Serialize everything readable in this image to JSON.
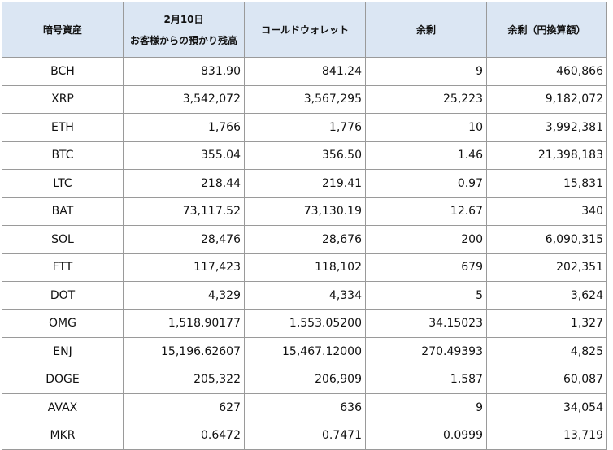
{
  "headers": {
    "asset": "暗号資産",
    "custody_date": "2月10日",
    "custody_label": "お客様からの預かり残高",
    "cold_wallet": "コールドウォレット",
    "surplus": "余剰",
    "surplus_jpy": "余剰（円換算額）"
  },
  "rows": [
    {
      "asset": "BCH",
      "custody": "831.90",
      "cold": "841.24",
      "surplus": "9",
      "jpy": "460,866"
    },
    {
      "asset": "XRP",
      "custody": "3,542,072",
      "cold": "3,567,295",
      "surplus": "25,223",
      "jpy": "9,182,072"
    },
    {
      "asset": "ETH",
      "custody": "1,766",
      "cold": "1,776",
      "surplus": "10",
      "jpy": "3,992,381"
    },
    {
      "asset": "BTC",
      "custody": "355.04",
      "cold": "356.50",
      "surplus": "1.46",
      "jpy": "21,398,183"
    },
    {
      "asset": "LTC",
      "custody": "218.44",
      "cold": "219.41",
      "surplus": "0.97",
      "jpy": "15,831"
    },
    {
      "asset": "BAT",
      "custody": "73,117.52",
      "cold": "73,130.19",
      "surplus": "12.67",
      "jpy": "340"
    },
    {
      "asset": "SOL",
      "custody": "28,476",
      "cold": "28,676",
      "surplus": "200",
      "jpy": "6,090,315"
    },
    {
      "asset": "FTT",
      "custody": "117,423",
      "cold": "118,102",
      "surplus": "679",
      "jpy": "202,351"
    },
    {
      "asset": "DOT",
      "custody": "4,329",
      "cold": "4,334",
      "surplus": "5",
      "jpy": "3,624"
    },
    {
      "asset": "OMG",
      "custody": "1,518.90177",
      "cold": "1,553.05200",
      "surplus": "34.15023",
      "jpy": "1,327"
    },
    {
      "asset": "ENJ",
      "custody": "15,196.62607",
      "cold": "15,467.12000",
      "surplus": "270.49393",
      "jpy": "4,825"
    },
    {
      "asset": "DOGE",
      "custody": "205,322",
      "cold": "206,909",
      "surplus": "1,587",
      "jpy": "60,087"
    },
    {
      "asset": "AVAX",
      "custody": "627",
      "cold": "636",
      "surplus": "9",
      "jpy": "34,054"
    },
    {
      "asset": "MKR",
      "custody": "0.6472",
      "cold": "0.7471",
      "surplus": "0.0999",
      "jpy": "13,719"
    }
  ]
}
